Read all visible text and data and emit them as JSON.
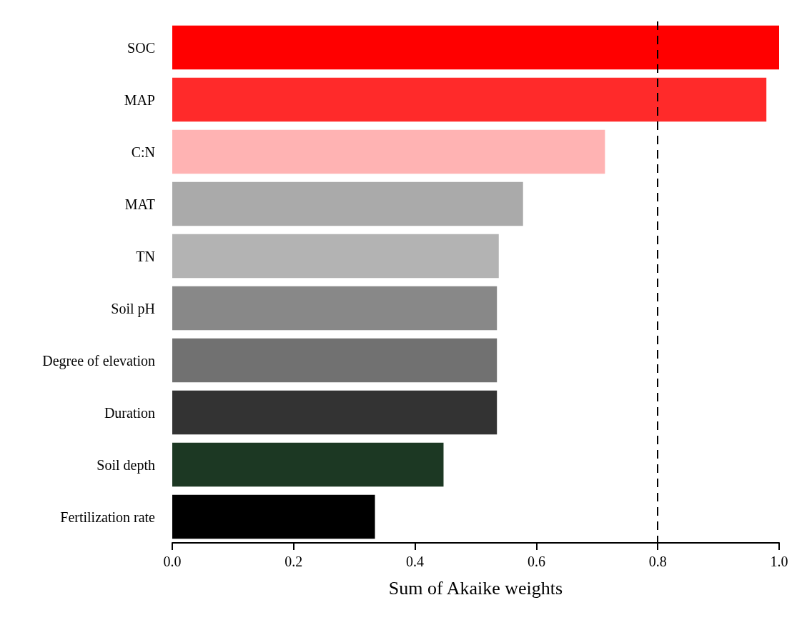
{
  "chart_data": {
    "type": "bar",
    "orientation": "horizontal",
    "xlabel": "Sum of Akaike weights",
    "categories": [
      "SOC",
      "MAP",
      "C:N",
      "MAT",
      "TN",
      "Soil pH",
      "Degree of elevation",
      "Duration",
      "Soil depth",
      "Fertilization rate"
    ],
    "values": [
      1.0,
      0.979,
      0.713,
      0.578,
      0.538,
      0.535,
      0.535,
      0.535,
      0.447,
      0.334
    ],
    "colors": [
      "#ff0000",
      "#ff2a2a",
      "#ffb3b3",
      "#aaaaaa",
      "#b3b3b3",
      "#888888",
      "#717171",
      "#333333",
      "#1c3823",
      "#000000"
    ],
    "xlim": [
      0,
      1
    ],
    "xticks": [
      {
        "value": 0,
        "label": "0.0"
      },
      {
        "value": 0.2,
        "label": "0.2"
      },
      {
        "value": 0.4,
        "label": "0.4"
      },
      {
        "value": 0.6,
        "label": "0.6"
      },
      {
        "value": 0.8,
        "label": "0.8"
      },
      {
        "value": 1,
        "label": "1.0"
      }
    ],
    "ref_lines": [
      {
        "axis": "x",
        "value": 0.8,
        "color": "#000000",
        "line_style": "dashed"
      }
    ],
    "grid": false
  }
}
